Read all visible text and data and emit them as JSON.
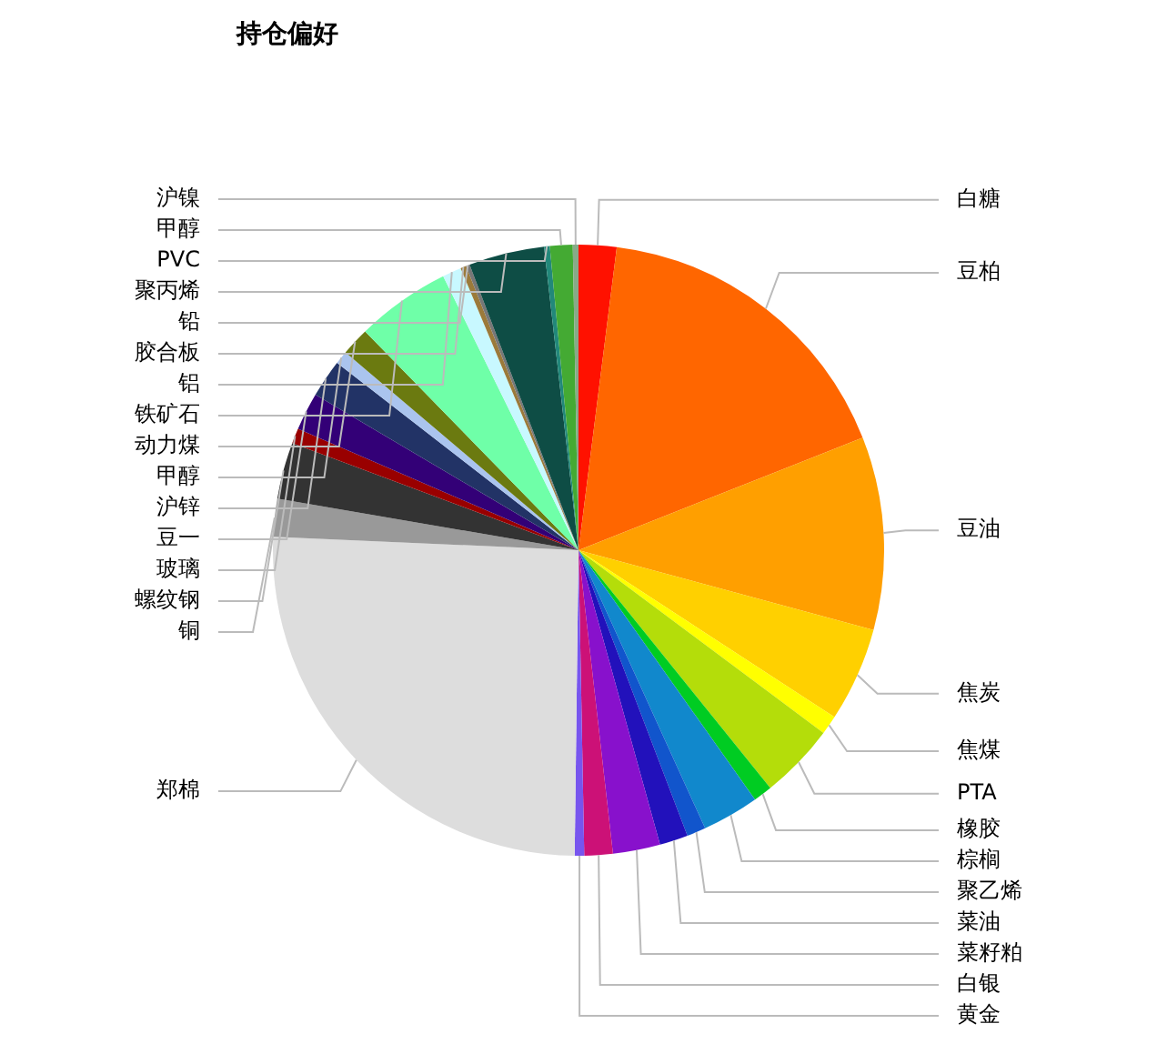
{
  "chart_data": {
    "type": "pie",
    "title": "持仓偏好",
    "legend": false,
    "categories": [
      "白糖",
      "豆柏",
      "豆油",
      "焦炭",
      "焦煤",
      "PTA",
      "橡胶",
      "棕榈",
      "聚乙烯",
      "菜油",
      "菜籽粕",
      "白银",
      "黄金",
      "郑棉",
      "铜",
      "螺纹钢",
      "玻璃",
      "豆一",
      "沪锌",
      "甲醇",
      "动力煤",
      "铁矿石",
      "铝",
      "胶合板",
      "铅",
      "聚丙烯",
      "PVC",
      "甲醇",
      "沪镍"
    ],
    "values": [
      2,
      17,
      10.2,
      5,
      1,
      4,
      1,
      3,
      1,
      1.5,
      2.5,
      1.5,
      0.5,
      25.5,
      2,
      3,
      0.8,
      2,
      2,
      0.7,
      1.5,
      5,
      1,
      0.3,
      0.2,
      4,
      0.3,
      1.2,
      0.3
    ],
    "colors": [
      "#ff1100",
      "#ff6600",
      "#ff9f00",
      "#ffd000",
      "#ffff00",
      "#b4dd0a",
      "#00cc22",
      "#1188cc",
      "#1155cc",
      "#2211bb",
      "#8811cc",
      "#cc1177",
      "#7755ee",
      "#dddddd",
      "#999999",
      "#333333",
      "#990000",
      "#330077",
      "#223366",
      "#aac4ee",
      "#6b7a10",
      "#6fffa8",
      "#c8f8ff",
      "#9b7a3a",
      "#777777",
      "#0e4d45",
      "#22887a",
      "#44aa33",
      "#88aa88"
    ]
  }
}
